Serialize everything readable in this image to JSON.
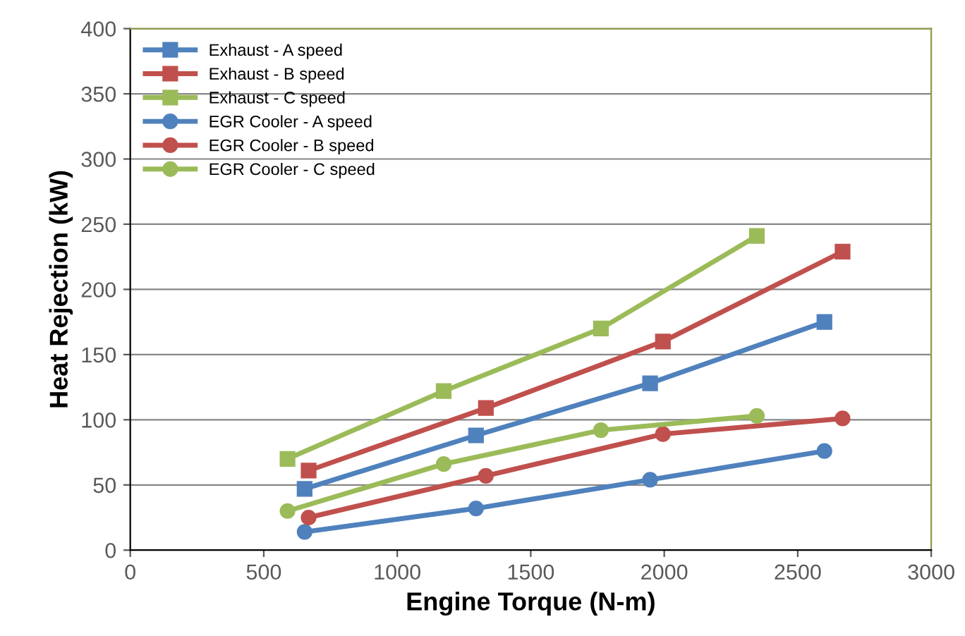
{
  "chart_data": {
    "type": "line",
    "xlabel": "Engine Torque (N-m)",
    "ylabel": "Heat Rejection (kW)",
    "xlim": [
      0,
      3000
    ],
    "xticks": [
      0,
      500,
      1000,
      1500,
      2000,
      2500,
      3000
    ],
    "ylim": [
      0,
      400
    ],
    "yticks": [
      0,
      50,
      100,
      150,
      200,
      250,
      300,
      350,
      400
    ],
    "grid": "y",
    "legend": "top left",
    "line_style": "solid",
    "series": [
      {
        "name": "Exhaust - A speed",
        "color": "#4f81bd",
        "marker": "square",
        "x": [
          653,
          1295,
          1947,
          2600
        ],
        "values": [
          47,
          88,
          128,
          175
        ]
      },
      {
        "name": "Exhaust - B speed",
        "color": "#c0504d",
        "marker": "square",
        "x": [
          668,
          1332,
          1995,
          2668
        ],
        "values": [
          61,
          109,
          160,
          229
        ]
      },
      {
        "name": "Exhaust - C speed",
        "color": "#9bbb59",
        "marker": "square",
        "x": [
          589,
          1174,
          1763,
          2347
        ],
        "values": [
          70,
          122,
          170,
          241
        ]
      },
      {
        "name": "EGR Cooler - A speed",
        "color": "#4f81bd",
        "marker": "circle",
        "x": [
          653,
          1295,
          1947,
          2600
        ],
        "values": [
          14,
          32,
          54,
          76
        ]
      },
      {
        "name": "EGR Cooler - B speed",
        "color": "#c0504d",
        "marker": "circle",
        "x": [
          668,
          1332,
          1995,
          2668
        ],
        "values": [
          25,
          57,
          89,
          101
        ]
      },
      {
        "name": "EGR Cooler - C speed",
        "color": "#9bbb59",
        "marker": "circle",
        "x": [
          589,
          1174,
          1763,
          2347
        ],
        "values": [
          30,
          66,
          92,
          103
        ]
      }
    ]
  }
}
